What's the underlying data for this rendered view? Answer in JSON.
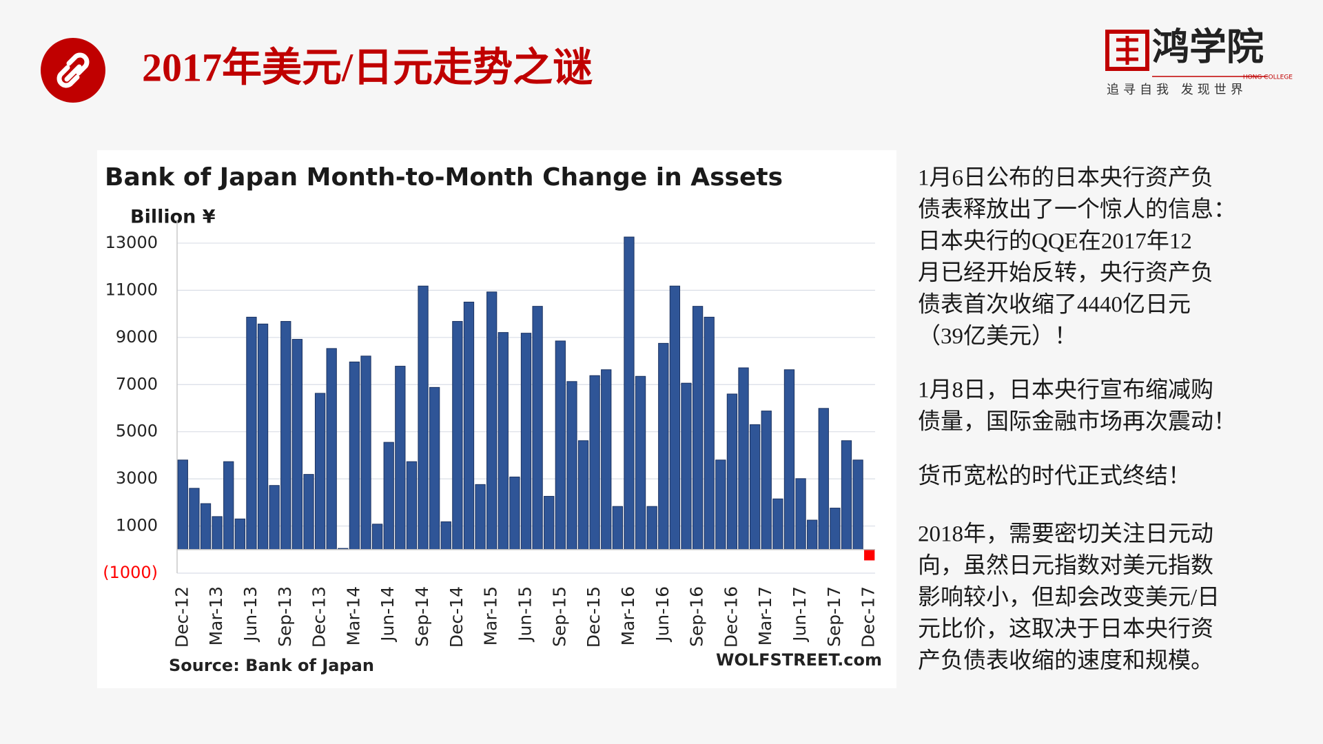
{
  "slide_title": "2017年美元/日元走势之谜",
  "logo": {
    "name": "鸿学院",
    "english": "HONG COLLEGE",
    "slogan": "追寻自我  发现世界"
  },
  "paragraphs": [
    [
      "1月6日公布的日本央行资产负",
      "债表释放出了一个惊人的信息：",
      "日本央行的QQE在2017年12",
      "月已经开始反转，央行资产负",
      "债表首次收缩了4440亿日元",
      "（39亿美元）！"
    ],
    [
      "1月8日，日本央行宣布缩减购",
      "债量，国际金融市场再次震动！"
    ],
    [
      "货币宽松的时代正式终结！"
    ],
    [
      "2018年，需要密切关注日元动",
      "向，虽然日元指数对美元指数",
      "影响较小，但却会改变美元/日",
      "元比价，这取决于日本央行资",
      "产负债表收缩的速度和规模。"
    ]
  ],
  "chart_data": {
    "type": "bar",
    "title": "Bank of Japan Month-to-Month Change in Assets",
    "y_label": "Billion ¥",
    "source": "Source: Bank of Japan",
    "credit": "WOLFSTREET.com",
    "categories": [
      "Dec-12",
      null,
      null,
      "Mar-13",
      null,
      null,
      "Jun-13",
      null,
      null,
      "Sep-13",
      null,
      null,
      "Dec-13",
      null,
      null,
      "Mar-14",
      null,
      null,
      "Jun-14",
      null,
      null,
      "Sep-14",
      null,
      null,
      "Dec-14",
      null,
      null,
      "Mar-15",
      null,
      null,
      "Jun-15",
      null,
      null,
      "Sep-15",
      null,
      null,
      "Dec-15",
      null,
      null,
      "Mar-16",
      null,
      null,
      "Jun-16",
      null,
      null,
      "Sep-16",
      null,
      null,
      "Dec-16",
      null,
      null,
      "Mar-17",
      null,
      null,
      "Jun-17",
      null,
      null,
      "Sep-17",
      null,
      null,
      "Dec-17"
    ],
    "values": [
      3800,
      2600,
      1950,
      1400,
      3730,
      1300,
      9860,
      9570,
      2720,
      9680,
      8920,
      3190,
      6630,
      8530,
      50,
      7960,
      8210,
      1080,
      4550,
      7780,
      3730,
      11180,
      6880,
      1180,
      9680,
      10500,
      2760,
      10930,
      9210,
      3080,
      9180,
      10320,
      2260,
      8850,
      7130,
      4620,
      7380,
      7630,
      1830,
      13260,
      7350,
      1830,
      8750,
      11180,
      7060,
      10320,
      9860,
      3800,
      6600,
      7710,
      5300,
      5880,
      2150,
      7630,
      3010,
      1250,
      5990,
      1760,
      4620,
      3800,
      -444
    ],
    "color": "#2f5597",
    "negative_color": "#ff0000",
    "ylim": [
      -1000,
      13700
    ],
    "yticks": [
      {
        "value": -1000,
        "label": "(1000)"
      },
      1000,
      3000,
      5000,
      7000,
      9000,
      11000,
      13000
    ],
    "grid": true
  }
}
